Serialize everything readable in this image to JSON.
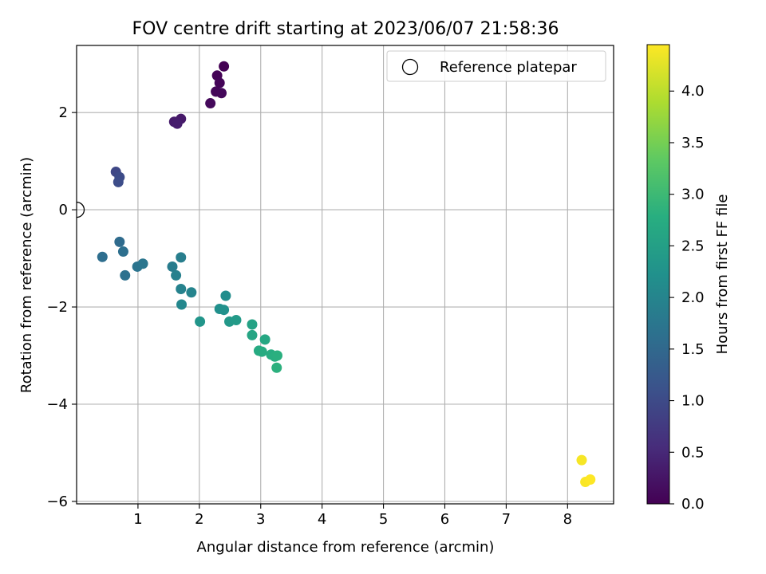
{
  "chart_data": {
    "type": "scatter",
    "title": "FOV centre drift starting at 2023/06/07 21:58:36",
    "xlabel": "Angular distance from reference (arcmin)",
    "ylabel": "Rotation from reference (arcmin)",
    "xlim": [
      0,
      8.75
    ],
    "ylim": [
      -6.05,
      3.38
    ],
    "xticks": [
      1,
      2,
      3,
      4,
      5,
      6,
      7,
      8
    ],
    "xtick_labels": [
      "1",
      "2",
      "3",
      "4",
      "5",
      "6",
      "7",
      "8"
    ],
    "yticks": [
      -6,
      -4,
      -2,
      0,
      2
    ],
    "ytick_labels": [
      "−6",
      "−4",
      "−2",
      "0",
      "2"
    ],
    "grid": true,
    "legend": {
      "position": "upper right",
      "entries": [
        "Reference platepar"
      ]
    },
    "reference_point": {
      "x": 0,
      "y": 0,
      "label": "Reference platepar"
    },
    "colorbar": {
      "label": "Hours from first FF file",
      "min": 0.0,
      "max": 4.45,
      "colormap": "viridis",
      "ticks": [
        0.0,
        0.5,
        1.0,
        1.5,
        2.0,
        2.5,
        3.0,
        3.5,
        4.0
      ],
      "tick_labels": [
        "0.0",
        "0.5",
        "1.0",
        "1.5",
        "2.0",
        "2.5",
        "3.0",
        "3.5",
        "4.0"
      ]
    },
    "points": [
      {
        "x": 2.4,
        "y": 2.95,
        "hours": 0.0
      },
      {
        "x": 2.29,
        "y": 2.76,
        "hours": 0.03
      },
      {
        "x": 2.33,
        "y": 2.61,
        "hours": 0.05
      },
      {
        "x": 2.27,
        "y": 2.43,
        "hours": 0.07
      },
      {
        "x": 2.36,
        "y": 2.4,
        "hours": 0.08
      },
      {
        "x": 2.18,
        "y": 2.19,
        "hours": 0.1
      },
      {
        "x": 1.7,
        "y": 1.87,
        "hours": 0.3
      },
      {
        "x": 1.59,
        "y": 1.81,
        "hours": 0.33
      },
      {
        "x": 1.64,
        "y": 1.77,
        "hours": 0.36
      },
      {
        "x": 0.64,
        "y": 0.78,
        "hours": 0.95
      },
      {
        "x": 0.7,
        "y": 0.67,
        "hours": 1.0
      },
      {
        "x": 0.68,
        "y": 0.57,
        "hours": 1.03
      },
      {
        "x": 0.7,
        "y": -0.66,
        "hours": 1.55
      },
      {
        "x": 0.42,
        "y": -0.97,
        "hours": 1.6
      },
      {
        "x": 0.76,
        "y": -0.86,
        "hours": 1.62
      },
      {
        "x": 0.79,
        "y": -1.35,
        "hours": 1.65
      },
      {
        "x": 0.99,
        "y": -1.17,
        "hours": 1.7
      },
      {
        "x": 1.08,
        "y": -1.11,
        "hours": 1.74
      },
      {
        "x": 1.56,
        "y": -1.17,
        "hours": 1.85
      },
      {
        "x": 1.7,
        "y": -0.98,
        "hours": 1.88
      },
      {
        "x": 1.62,
        "y": -1.35,
        "hours": 1.92
      },
      {
        "x": 1.7,
        "y": -1.63,
        "hours": 1.96
      },
      {
        "x": 1.87,
        "y": -1.7,
        "hours": 2.0
      },
      {
        "x": 1.71,
        "y": -1.95,
        "hours": 2.05
      },
      {
        "x": 2.43,
        "y": -1.77,
        "hours": 2.15
      },
      {
        "x": 2.33,
        "y": -2.04,
        "hours": 2.2
      },
      {
        "x": 2.4,
        "y": -2.06,
        "hours": 2.23
      },
      {
        "x": 2.01,
        "y": -2.3,
        "hours": 2.3
      },
      {
        "x": 2.49,
        "y": -2.3,
        "hours": 2.35
      },
      {
        "x": 2.6,
        "y": -2.27,
        "hours": 2.4
      },
      {
        "x": 2.86,
        "y": -2.36,
        "hours": 2.55
      },
      {
        "x": 2.86,
        "y": -2.58,
        "hours": 2.6
      },
      {
        "x": 3.07,
        "y": -2.67,
        "hours": 2.65
      },
      {
        "x": 2.97,
        "y": -2.9,
        "hours": 2.7
      },
      {
        "x": 3.02,
        "y": -2.92,
        "hours": 2.72
      },
      {
        "x": 3.17,
        "y": -2.98,
        "hours": 2.75
      },
      {
        "x": 3.23,
        "y": -3.02,
        "hours": 2.78
      },
      {
        "x": 3.27,
        "y": -3.0,
        "hours": 2.8
      },
      {
        "x": 3.26,
        "y": -3.25,
        "hours": 2.82
      },
      {
        "x": 8.23,
        "y": -5.15,
        "hours": 4.4
      },
      {
        "x": 8.29,
        "y": -5.6,
        "hours": 4.42
      },
      {
        "x": 8.37,
        "y": -5.55,
        "hours": 4.45
      }
    ]
  }
}
